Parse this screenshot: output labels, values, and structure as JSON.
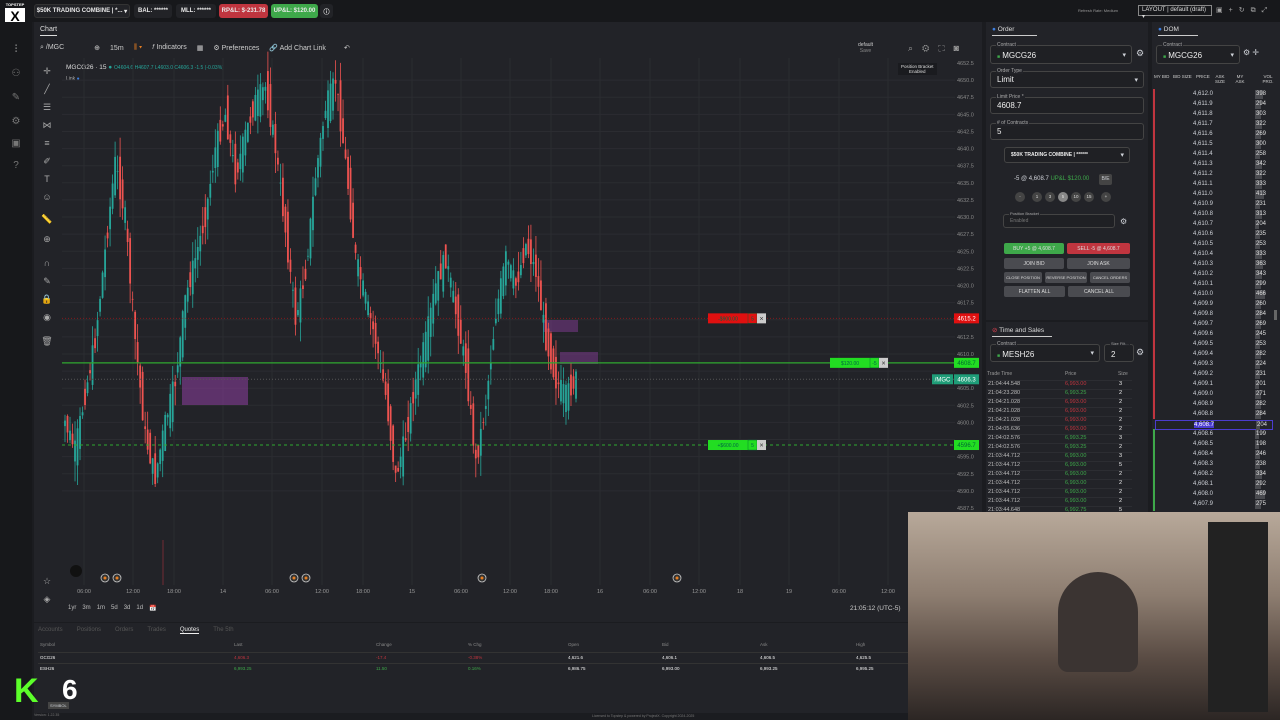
{
  "brand": {
    "logo_text": "TOPSTEP",
    "logo_letter": "X"
  },
  "topbar": {
    "account": "$50K TRADING COMBINE | *...",
    "bal": "BAL: ******",
    "mll": "MLL: ******",
    "rpl": "RP&L: $-231.78",
    "upl": "UP&L: $120.00",
    "refresh": "Refresh Rate: Medium",
    "layout": "LAYOUT | default (draft)"
  },
  "chart": {
    "tab": "Chart",
    "symbol_search": "/MGC",
    "interval": "15m",
    "indicators": "Indicators",
    "preferences": "Preferences",
    "add_link": "Add Chart Link",
    "template": "default",
    "template_sub": "Save",
    "title": "MGCG26 · 15",
    "ohlc": "O4604.6 H4607.7 L4603.0 C4606.3 -1.5 (-0.03%)",
    "link": "Link",
    "bracket_tip": [
      "Position Bracket",
      "Enabled"
    ],
    "price_ticks": [
      "4652.5",
      "4650.0",
      "4647.5",
      "4645.0",
      "4642.5",
      "4640.0",
      "4637.5",
      "4635.0",
      "4632.5",
      "4630.0",
      "4627.5",
      "4625.0",
      "4622.5",
      "4620.0",
      "4617.5",
      "4612.5",
      "4610.0",
      "4605.0",
      "4602.5",
      "4600.0",
      "4595.0",
      "4592.5",
      "4590.0",
      "4587.5"
    ],
    "stop_label": "4615.2",
    "entry_label": "4608.7",
    "last_symbol": "/MGC",
    "last_label": "4606.3",
    "target_label": "4596.7",
    "stop_order": {
      "text": "-$900.00",
      "qty": "5"
    },
    "position": {
      "text": "$120.00",
      "qty": "-5"
    },
    "target_order": {
      "text": "+$600.00",
      "qty": "5"
    },
    "time_ticks": [
      "06:00",
      "12:00",
      "18:00",
      "14",
      "06:00",
      "12:00",
      "18:00",
      "15",
      "06:00",
      "12:00",
      "18:00",
      "16",
      "06:00",
      "12:00",
      "18",
      "19",
      "06:00",
      "12:00"
    ],
    "ranges": [
      "1yr",
      "3m",
      "1m",
      "5d",
      "3d",
      "1d"
    ],
    "clock": "21:05:12 (UTC-5)",
    "colors": {
      "up": "#26a69a",
      "down": "#ef5350",
      "stop": "#e01010",
      "entry": "#22cc22"
    }
  },
  "chart_data": {
    "type": "candlestick",
    "ylim": [
      4587.5,
      4652.5
    ],
    "closes": [
      4600,
      4596,
      4604,
      4612,
      4625,
      4638,
      4630,
      4612,
      4598,
      4592,
      4600,
      4606,
      4618,
      4624,
      4630,
      4640,
      4645,
      4636,
      4642,
      4647,
      4649,
      4640,
      4628,
      4615,
      4622,
      4636,
      4646,
      4650,
      4638,
      4624,
      4618,
      4612,
      4604,
      4592,
      4598,
      4606,
      4612,
      4620,
      4624,
      4616,
      4608,
      4594,
      4603,
      4616,
      4624,
      4620,
      4626,
      4622,
      4612,
      4606,
      4604,
      4606.3
    ]
  },
  "order": {
    "tab": "Order",
    "contract_label": "Contract",
    "contract": "MGCG26",
    "type_label": "Order Type",
    "type": "Limit",
    "price_label": "Limit Price *",
    "price": "4608.7",
    "qty_label": "# of Contracts",
    "qty": "5",
    "account": "$50K TRADING COMBINE | ******",
    "position": "-5 @ 4,608.7",
    "upl": "UP&L $120.00",
    "be": "B/E",
    "qty_presets": [
      "-",
      "1",
      "3",
      "5",
      "10",
      "15",
      "+"
    ],
    "bracket_label": "Position Bracket",
    "bracket": "Enabled",
    "buy": "BUY +5 @ 4,608.7",
    "sell": "SELL -5 @ 4,608.7",
    "join_bid": "JOIN BID",
    "join_ask": "JOIN ASK",
    "close": "CLOSE POSITION",
    "reverse": "REVERSE POSITION",
    "cancel_orders": "CANCEL ORDERS",
    "flatten": "FLATTEN ALL",
    "cancel_all": "CANCEL ALL"
  },
  "dom": {
    "tab": "DOM",
    "contract_label": "Contract",
    "contract": "MGCG26",
    "headers": [
      "MY BID",
      "BID SIZE",
      "PRICE",
      "ASK SIZE",
      "MY ASK",
      "VOL PRO."
    ],
    "highlight": "4,608.7",
    "rows": [
      [
        "4,612.0",
        "398"
      ],
      [
        "4,611.9",
        "294"
      ],
      [
        "4,611.8",
        "303"
      ],
      [
        "4,611.7",
        "322"
      ],
      [
        "4,611.6",
        "269"
      ],
      [
        "4,611.5",
        "300"
      ],
      [
        "4,611.4",
        "258"
      ],
      [
        "4,611.3",
        "342"
      ],
      [
        "4,611.2",
        "322"
      ],
      [
        "4,611.1",
        "333"
      ],
      [
        "4,611.0",
        "413"
      ],
      [
        "4,610.9",
        "231"
      ],
      [
        "4,610.8",
        "313"
      ],
      [
        "4,610.7",
        "204"
      ],
      [
        "4,610.6",
        "235"
      ],
      [
        "4,610.5",
        "253"
      ],
      [
        "4,610.4",
        "333"
      ],
      [
        "4,610.3",
        "363"
      ],
      [
        "4,610.2",
        "343"
      ],
      [
        "4,610.1",
        "299"
      ],
      [
        "4,610.0",
        "466"
      ],
      [
        "4,609.9",
        "260"
      ],
      [
        "4,609.8",
        "284"
      ],
      [
        "4,609.7",
        "269"
      ],
      [
        "4,609.6",
        "245"
      ],
      [
        "4,609.5",
        "253"
      ],
      [
        "4,609.4",
        "282"
      ],
      [
        "4,609.3",
        "224"
      ],
      [
        "4,609.2",
        "231"
      ],
      [
        "4,609.1",
        "201"
      ],
      [
        "4,609.0",
        "271"
      ],
      [
        "4,608.9",
        "282"
      ],
      [
        "4,608.8",
        "284"
      ],
      [
        "4,608.7",
        "204"
      ],
      [
        "4,608.6",
        "199"
      ],
      [
        "4,608.5",
        "198"
      ],
      [
        "4,608.4",
        "246"
      ],
      [
        "4,608.3",
        "238"
      ],
      [
        "4,608.2",
        "334"
      ],
      [
        "4,608.1",
        "292"
      ],
      [
        "4,608.0",
        "469"
      ],
      [
        "4,607.9",
        "275"
      ]
    ]
  },
  "tas": {
    "tab": "Time and Sales",
    "contract_label": "Contract",
    "contract": "MESH26",
    "size_label": "Size Filt...",
    "size": "2",
    "headers": [
      "Trade Time",
      "Price",
      "Size"
    ],
    "rows": [
      [
        "21:04:44.548",
        "6,993.00",
        "3",
        "down"
      ],
      [
        "21:04:23.280",
        "6,993.25",
        "2",
        "up"
      ],
      [
        "21:04:21.028",
        "6,993.00",
        "2",
        "down"
      ],
      [
        "21:04:21.028",
        "6,993.00",
        "2",
        "down"
      ],
      [
        "21:04:21.028",
        "6,993.00",
        "2",
        "down"
      ],
      [
        "21:04:05.636",
        "6,993.00",
        "2",
        "down"
      ],
      [
        "21:04:02.576",
        "6,993.25",
        "3",
        "up"
      ],
      [
        "21:04:02.576",
        "6,993.25",
        "2",
        "up"
      ],
      [
        "21:03:44.712",
        "6,993.00",
        "3",
        "up"
      ],
      [
        "21:03:44.712",
        "6,993.00",
        "5",
        "up"
      ],
      [
        "21:03:44.712",
        "6,993.00",
        "2",
        "up"
      ],
      [
        "21:03:44.712",
        "6,993.00",
        "2",
        "up"
      ],
      [
        "21:03:44.712",
        "6,993.00",
        "2",
        "up"
      ],
      [
        "21:03:44.712",
        "6,993.00",
        "2",
        "up"
      ],
      [
        "21:03:44.648",
        "6,992.75",
        "5",
        "up"
      ]
    ]
  },
  "bottom": {
    "tabs": [
      "Accounts",
      "Positions",
      "Orders",
      "Trades",
      "Quotes",
      "The 5th"
    ],
    "active": "Quotes",
    "headers": [
      "Symbol",
      "Last",
      "Change",
      "% Chg",
      "Open",
      "Bid",
      "Ask",
      "High"
    ],
    "rows": [
      [
        "GCG26",
        "4,606.3",
        "-17.4",
        "-0.38%",
        "4,621.6",
        "4,606.1",
        "4,606.5",
        "4,625.5",
        "down"
      ],
      [
        "ESH26",
        "6,993.25",
        "11.50",
        "0.16%",
        "6,986.75",
        "6,993.00",
        "6,993.25",
        "6,995.25",
        "up"
      ]
    ],
    "symbol_btn": "SYMBOL",
    "version": "Version: 1.22.35",
    "license": "Licensed to Topstep & powered by ProjectX. Copyright 2024-2025"
  },
  "overlay": {
    "stream_mark": "K",
    "stream_num": "6"
  }
}
